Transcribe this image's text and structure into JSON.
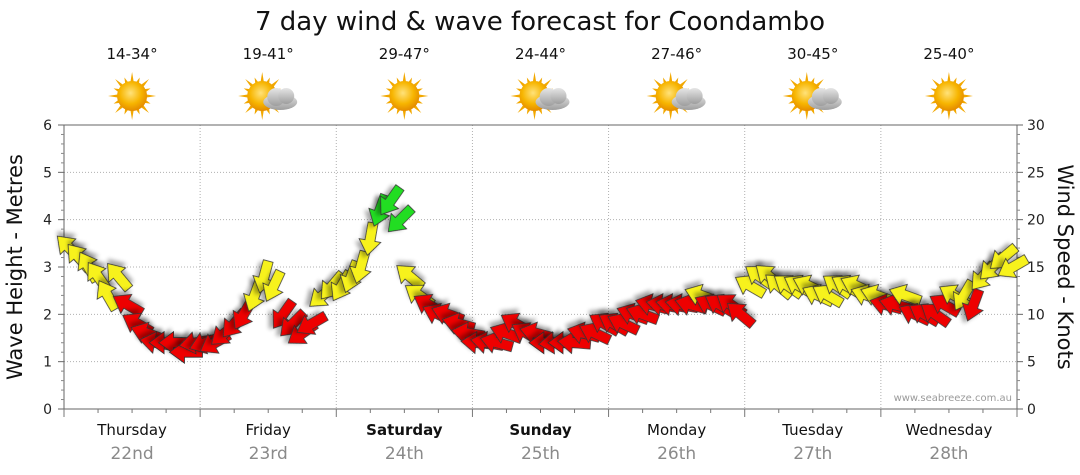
{
  "chart_data": {
    "type": "line",
    "title": "7 day wind & wave forecast for Coondambo",
    "ylabel_left": "Wave Height - Metres",
    "ylabel_right": "Wind Speed - Knots",
    "ylim_left": [
      0,
      6
    ],
    "ylim_right": [
      0,
      30
    ],
    "yticks_left": [
      "0",
      "1",
      "2",
      "3",
      "4",
      "5",
      "6"
    ],
    "yticks_right": [
      "0",
      "5",
      "10",
      "15",
      "20",
      "25",
      "30"
    ],
    "credit": "www.seabreeze.com.au",
    "days": [
      {
        "name": "Thursday",
        "date": "22nd",
        "temp": "14-34°",
        "icon": "sun-icon",
        "bold": false
      },
      {
        "name": "Friday",
        "date": "23rd",
        "temp": "19-41°",
        "icon": "sun-cloud-icon",
        "bold": false
      },
      {
        "name": "Saturday",
        "date": "24th",
        "temp": "29-47°",
        "icon": "sun-icon",
        "bold": true
      },
      {
        "name": "Sunday",
        "date": "25th",
        "temp": "24-44°",
        "icon": "sun-cloud-icon",
        "bold": true
      },
      {
        "name": "Monday",
        "date": "26th",
        "temp": "27-46°",
        "icon": "sun-cloud-icon",
        "bold": false
      },
      {
        "name": "Tuesday",
        "date": "27th",
        "temp": "30-45°",
        "icon": "sun-cloud-icon",
        "bold": false
      },
      {
        "name": "Wednesday",
        "date": "28th",
        "temp": "25-40°",
        "icon": "sun-icon",
        "bold": false
      }
    ],
    "wind_series": {
      "name": "Wind Speed (knots)",
      "x_days": [
        0.0,
        0.07,
        0.14,
        0.21,
        0.28,
        0.36,
        0.43,
        0.5,
        0.57,
        0.64,
        0.71,
        0.78,
        0.86,
        0.93,
        1.0,
        1.07,
        1.14,
        1.21,
        1.28,
        1.36,
        1.43,
        1.5,
        1.57,
        1.64,
        1.71,
        1.78,
        1.86,
        1.93,
        2.0,
        2.07,
        2.14,
        2.21,
        2.28,
        2.36,
        2.43,
        2.5,
        2.57,
        2.64,
        2.71,
        2.78,
        2.86,
        2.93,
        3.0,
        3.07,
        3.14,
        3.21,
        3.28,
        3.36,
        3.43,
        3.5,
        3.57,
        3.64,
        3.71,
        3.78,
        3.86,
        3.93,
        4.0,
        4.07,
        4.14,
        4.21,
        4.28,
        4.36,
        4.43,
        4.5,
        4.57,
        4.64,
        4.71,
        4.78,
        4.86,
        4.93,
        5.0,
        5.07,
        5.14,
        5.21,
        5.28,
        5.36,
        5.43,
        5.5,
        5.57,
        5.64,
        5.71,
        5.78,
        5.86,
        5.93,
        6.0,
        6.07,
        6.14,
        6.21,
        6.28,
        6.36,
        6.43,
        6.5,
        6.57,
        6.64,
        6.71,
        6.78,
        6.86,
        6.93
      ],
      "knots": [
        17,
        16,
        15,
        14,
        12,
        14,
        11,
        9,
        8,
        7,
        7,
        7,
        6,
        7,
        7,
        7,
        8,
        9,
        10,
        12,
        14,
        13,
        10,
        9,
        8,
        9,
        12,
        13,
        13,
        14,
        15,
        18,
        21,
        22,
        20,
        14,
        12,
        11,
        10,
        10,
        9,
        8,
        7,
        7,
        7,
        8,
        9,
        8,
        8,
        7,
        7,
        7,
        7,
        8,
        8,
        9,
        9,
        9,
        10,
        10,
        11,
        11,
        11,
        11,
        11,
        12,
        11,
        11,
        11,
        10,
        13,
        14,
        14,
        13,
        13,
        13,
        13,
        12,
        12,
        13,
        13,
        13,
        12,
        12,
        11,
        11,
        12,
        10,
        10,
        10,
        11,
        12,
        12,
        11,
        14,
        15,
        16,
        15
      ],
      "direction_deg": [
        315,
        320,
        330,
        325,
        330,
        320,
        300,
        300,
        290,
        280,
        270,
        270,
        270,
        260,
        250,
        240,
        230,
        220,
        210,
        200,
        195,
        205,
        215,
        225,
        235,
        240,
        230,
        220,
        210,
        200,
        195,
        190,
        200,
        215,
        225,
        310,
        305,
        300,
        295,
        290,
        285,
        280,
        275,
        280,
        285,
        290,
        300,
        300,
        285,
        270,
        265,
        270,
        275,
        285,
        295,
        300,
        300,
        295,
        290,
        290,
        285,
        280,
        280,
        280,
        285,
        290,
        295,
        300,
        305,
        310,
        300,
        305,
        310,
        310,
        305,
        300,
        295,
        295,
        300,
        305,
        300,
        295,
        290,
        290,
        285,
        285,
        290,
        295,
        300,
        305,
        300,
        300,
        210,
        200,
        220,
        225,
        230,
        240
      ],
      "color_bands": {
        "red": "< 12 knots",
        "yellow": "12-18 knots",
        "green": "> 18 knots"
      }
    }
  },
  "colors": {
    "red": "#ee0000",
    "yellow": "#f7f21a",
    "green": "#22dd22",
    "sun": "#f5b400",
    "cloud": "#b9b9b9"
  }
}
